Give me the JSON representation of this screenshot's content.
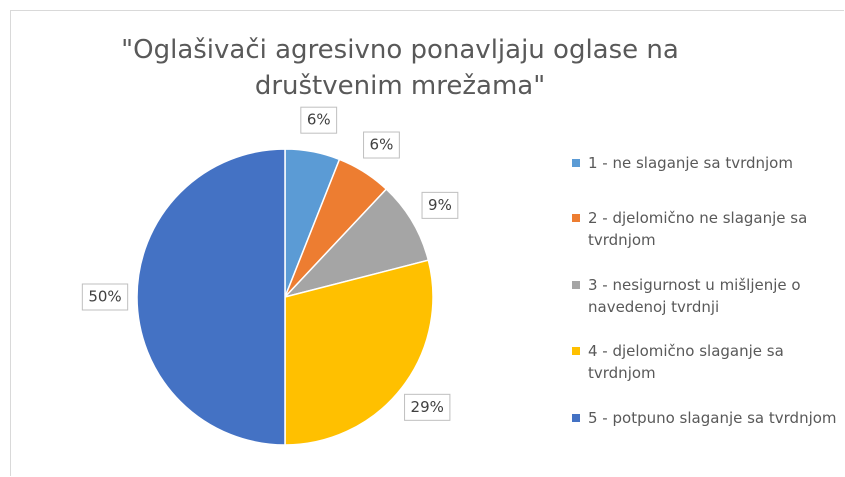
{
  "chart_data": {
    "type": "pie",
    "title": "\"Oglašivači agresivno ponavljaju oglase na društvenim mrežama\"",
    "categories": [
      "1 - ne slaganje sa tvrdnjom",
      "2 - djelomično ne slaganje sa tvrdnjom",
      "3 - nesigurnost u mišljenje o navedenoj tvrdnji",
      "4 - djelomično slaganje sa tvrdnjom",
      "5 - potpuno slaganje sa tvrdnjom"
    ],
    "values": [
      6,
      6,
      9,
      29,
      50
    ],
    "value_labels": [
      "6%",
      "6%",
      "9%",
      "29%",
      "50%"
    ],
    "colors": [
      "#5b9bd5",
      "#ed7d31",
      "#a5a5a5",
      "#ffc000",
      "#4472c4"
    ],
    "legend": "right"
  }
}
